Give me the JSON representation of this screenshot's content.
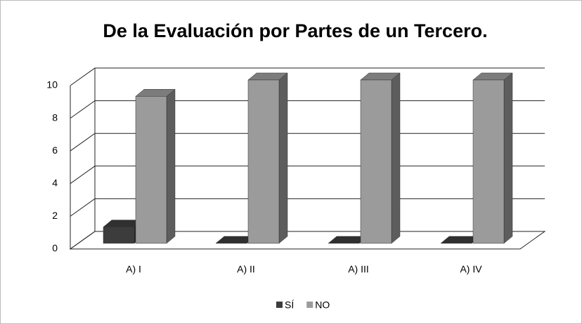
{
  "chart_data": {
    "type": "bar3d",
    "title": "De la Evaluación por Partes de un Tercero.",
    "categories": [
      "A) I",
      "A) II",
      "A) III",
      "A) IV"
    ],
    "series": [
      {
        "name": "SÍ",
        "color": "#3c3c3c",
        "values": [
          1,
          0,
          0,
          0
        ]
      },
      {
        "name": "NO",
        "color": "#9b9b9b",
        "values": [
          9,
          10,
          10,
          10
        ]
      }
    ],
    "ylim": [
      0,
      10
    ],
    "yticks": [
      0,
      2,
      4,
      6,
      8,
      10
    ],
    "grid": true,
    "legend": "bottom"
  }
}
